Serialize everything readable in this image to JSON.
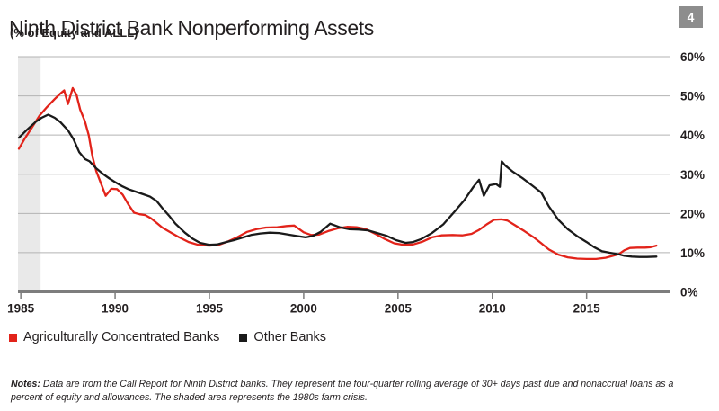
{
  "header": {
    "title": "Ninth District Bank Nonperforming Assets",
    "subtitle": "(% of Equity and ALLL)",
    "page_badge": "4"
  },
  "notes": {
    "label": "Notes:",
    "text": "Data are from the Call Report for Ninth District banks. They represent the four-quarter rolling average of 30+ days past due and nonaccrual loans as a percent of equity and allowances. The shaded area represents the 1980s farm crisis."
  },
  "chart_data": {
    "type": "line",
    "title": "Ninth District Bank Nonperforming Assets",
    "ylabel": "% of Equity and ALLL",
    "xlabel": "",
    "xlim": [
      1984.85,
      2019.4
    ],
    "ylim": [
      0,
      60
    ],
    "xticks": [
      1985,
      1990,
      1995,
      2000,
      2005,
      2010,
      2015
    ],
    "xtick_labels": [
      "1985",
      "1990",
      "1995",
      "2000",
      "2005",
      "2010",
      "2015"
    ],
    "yticks": [
      0,
      10,
      20,
      30,
      40,
      50,
      60
    ],
    "ytick_labels": [
      "0%",
      "10%",
      "20%",
      "30%",
      "40%",
      "50%",
      "60%"
    ],
    "grid": "horizontal",
    "y_axis_side": "right",
    "legend_position": "bottom-left",
    "colors": {
      "grid": "#b3b3b3",
      "axis": "#7d7d7d"
    },
    "shaded_region": {
      "x0": 1984.85,
      "x1": 1986.05,
      "color": "#e9e9e9",
      "meaning": "1980s farm crisis"
    },
    "series": [
      {
        "id": "ag-banks",
        "name": "Agriculturally Concentrated Banks",
        "color": "#e2231a",
        "points": [
          [
            1984.9,
            36.5
          ],
          [
            1985.2,
            39.0
          ],
          [
            1985.6,
            42.0
          ],
          [
            1986.0,
            45.0
          ],
          [
            1986.4,
            47.2
          ],
          [
            1986.8,
            49.2
          ],
          [
            1987.1,
            50.6
          ],
          [
            1987.3,
            51.4
          ],
          [
            1987.5,
            47.9
          ],
          [
            1987.75,
            52.0
          ],
          [
            1987.95,
            50.3
          ],
          [
            1988.15,
            46.5
          ],
          [
            1988.4,
            43.5
          ],
          [
            1988.6,
            40.0
          ],
          [
            1988.8,
            34.5
          ],
          [
            1989.0,
            30.8
          ],
          [
            1989.2,
            28.3
          ],
          [
            1989.5,
            24.5
          ],
          [
            1989.8,
            26.3
          ],
          [
            1990.1,
            26.2
          ],
          [
            1990.4,
            24.8
          ],
          [
            1990.7,
            22.3
          ],
          [
            1991.0,
            20.2
          ],
          [
            1991.3,
            19.8
          ],
          [
            1991.6,
            19.6
          ],
          [
            1991.9,
            18.8
          ],
          [
            1992.2,
            17.6
          ],
          [
            1992.5,
            16.4
          ],
          [
            1993.0,
            15.0
          ],
          [
            1993.4,
            13.9
          ],
          [
            1993.9,
            12.7
          ],
          [
            1994.4,
            12.0
          ],
          [
            1995.0,
            11.8
          ],
          [
            1995.5,
            12.0
          ],
          [
            1996.0,
            12.9
          ],
          [
            1996.5,
            14.0
          ],
          [
            1997.0,
            15.3
          ],
          [
            1997.5,
            16.0
          ],
          [
            1998.0,
            16.4
          ],
          [
            1998.6,
            16.5
          ],
          [
            1999.1,
            16.8
          ],
          [
            1999.5,
            16.9
          ],
          [
            2000.0,
            15.2
          ],
          [
            2000.4,
            14.5
          ],
          [
            2000.8,
            14.6
          ],
          [
            2001.3,
            15.5
          ],
          [
            2001.8,
            16.2
          ],
          [
            2002.3,
            16.6
          ],
          [
            2002.8,
            16.5
          ],
          [
            2003.3,
            16.0
          ],
          [
            2003.8,
            14.8
          ],
          [
            2004.3,
            13.5
          ],
          [
            2004.8,
            12.4
          ],
          [
            2005.3,
            12.0
          ],
          [
            2005.8,
            12.1
          ],
          [
            2006.3,
            12.8
          ],
          [
            2006.8,
            13.9
          ],
          [
            2007.3,
            14.4
          ],
          [
            2007.9,
            14.5
          ],
          [
            2008.4,
            14.4
          ],
          [
            2008.9,
            14.8
          ],
          [
            2009.3,
            15.8
          ],
          [
            2009.7,
            17.2
          ],
          [
            2010.1,
            18.4
          ],
          [
            2010.5,
            18.5
          ],
          [
            2010.8,
            18.2
          ],
          [
            2011.2,
            17.0
          ],
          [
            2011.7,
            15.5
          ],
          [
            2012.2,
            13.9
          ],
          [
            2012.6,
            12.4
          ],
          [
            2013.0,
            10.8
          ],
          [
            2013.5,
            9.5
          ],
          [
            2014.0,
            8.8
          ],
          [
            2014.5,
            8.5
          ],
          [
            2015.0,
            8.4
          ],
          [
            2015.5,
            8.4
          ],
          [
            2016.0,
            8.7
          ],
          [
            2016.4,
            9.2
          ],
          [
            2016.7,
            9.6
          ],
          [
            2017.0,
            10.6
          ],
          [
            2017.3,
            11.2
          ],
          [
            2017.7,
            11.3
          ],
          [
            2018.1,
            11.3
          ],
          [
            2018.4,
            11.4
          ],
          [
            2018.7,
            11.8
          ]
        ]
      },
      {
        "id": "other-banks",
        "name": "Other Banks",
        "color": "#1a1a1a",
        "points": [
          [
            1984.9,
            39.3
          ],
          [
            1985.3,
            41.2
          ],
          [
            1985.8,
            43.4
          ],
          [
            1986.1,
            44.4
          ],
          [
            1986.45,
            45.2
          ],
          [
            1986.8,
            44.4
          ],
          [
            1987.1,
            43.3
          ],
          [
            1987.5,
            41.2
          ],
          [
            1987.8,
            38.9
          ],
          [
            1988.1,
            35.6
          ],
          [
            1988.4,
            33.9
          ],
          [
            1988.65,
            33.3
          ],
          [
            1989.0,
            31.5
          ],
          [
            1989.35,
            30.1
          ],
          [
            1989.7,
            28.9
          ],
          [
            1990.0,
            28.0
          ],
          [
            1990.35,
            27.0
          ],
          [
            1990.7,
            26.2
          ],
          [
            1991.0,
            25.7
          ],
          [
            1991.5,
            24.9
          ],
          [
            1991.85,
            24.3
          ],
          [
            1992.2,
            23.2
          ],
          [
            1992.5,
            21.4
          ],
          [
            1992.9,
            19.2
          ],
          [
            1993.2,
            17.4
          ],
          [
            1993.7,
            15.1
          ],
          [
            1994.1,
            13.6
          ],
          [
            1994.5,
            12.5
          ],
          [
            1995.0,
            12.0
          ],
          [
            1995.4,
            12.1
          ],
          [
            1995.8,
            12.6
          ],
          [
            1996.3,
            13.2
          ],
          [
            1996.8,
            13.9
          ],
          [
            1997.2,
            14.5
          ],
          [
            1997.7,
            14.9
          ],
          [
            1998.2,
            15.1
          ],
          [
            1998.7,
            15.0
          ],
          [
            1999.2,
            14.6
          ],
          [
            1999.6,
            14.3
          ],
          [
            2000.1,
            13.9
          ],
          [
            2000.5,
            14.3
          ],
          [
            2000.9,
            15.3
          ],
          [
            2001.4,
            17.4
          ],
          [
            2001.9,
            16.5
          ],
          [
            2002.4,
            16.0
          ],
          [
            2002.9,
            15.9
          ],
          [
            2003.4,
            15.7
          ],
          [
            2003.9,
            15.0
          ],
          [
            2004.4,
            14.3
          ],
          [
            2004.9,
            13.2
          ],
          [
            2005.4,
            12.5
          ],
          [
            2005.8,
            12.7
          ],
          [
            2006.2,
            13.4
          ],
          [
            2006.8,
            15.0
          ],
          [
            2007.4,
            17.2
          ],
          [
            2008.0,
            20.5
          ],
          [
            2008.5,
            23.3
          ],
          [
            2009.0,
            26.8
          ],
          [
            2009.3,
            28.6
          ],
          [
            2009.55,
            24.5
          ],
          [
            2009.85,
            27.2
          ],
          [
            2010.2,
            27.5
          ],
          [
            2010.4,
            26.8
          ],
          [
            2010.5,
            33.3
          ],
          [
            2010.7,
            32.2
          ],
          [
            2011.1,
            30.6
          ],
          [
            2011.6,
            29.0
          ],
          [
            2012.1,
            27.2
          ],
          [
            2012.6,
            25.3
          ],
          [
            2013.0,
            21.8
          ],
          [
            2013.5,
            18.4
          ],
          [
            2014.0,
            16.0
          ],
          [
            2014.5,
            14.2
          ],
          [
            2015.0,
            12.7
          ],
          [
            2015.4,
            11.4
          ],
          [
            2015.8,
            10.4
          ],
          [
            2016.2,
            10.0
          ],
          [
            2016.7,
            9.6
          ],
          [
            2017.0,
            9.2
          ],
          [
            2017.4,
            9.0
          ],
          [
            2017.8,
            8.9
          ],
          [
            2018.2,
            8.9
          ],
          [
            2018.7,
            9.0
          ]
        ]
      }
    ]
  }
}
